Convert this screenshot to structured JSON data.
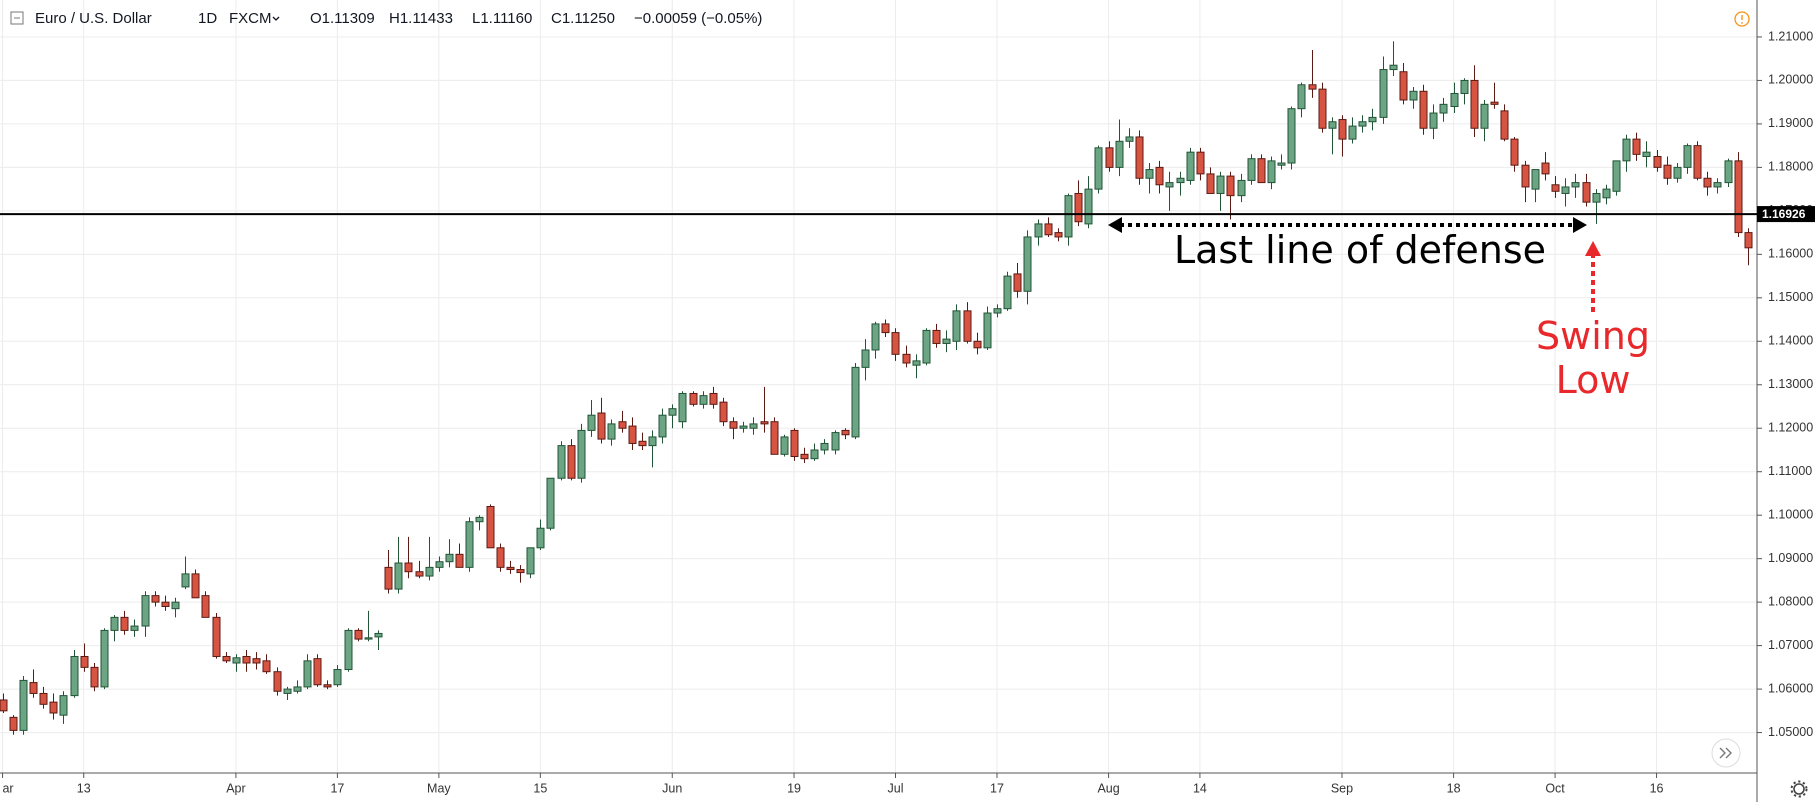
{
  "chart_data": {
    "type": "candlestick",
    "symbol": "Euro / U.S. Dollar",
    "interval": "1D",
    "source": "FXCM",
    "ohlc_labels": [
      "O1.11309",
      "H1.11433",
      "L1.11160",
      "C1.11250"
    ],
    "change": "−0.00059 (−0.05%)",
    "up_color": "#6ba583",
    "up_border": "#225437",
    "down_color": "#d75442",
    "down_border": "#5b1a13",
    "grid": true,
    "open": [
      1.0575,
      1.0535,
      1.0505,
      1.0615,
      1.059,
      1.057,
      1.054,
      1.0585,
      1.0675,
      1.065,
      1.0605,
      1.0735,
      1.0765,
      1.0735,
      1.0745,
      1.0815,
      1.08,
      1.0785,
      1.0835,
      1.0865,
      1.0815,
      1.0765,
      1.0675,
      1.066,
      1.0675,
      1.067,
      1.0665,
      1.064,
      1.059,
      1.0595,
      1.0605,
      1.067,
      1.061,
      1.061,
      1.0645,
      1.0735,
      1.0715,
      1.072,
      1.088,
      1.083,
      1.089,
      1.087,
      1.086,
      1.088,
      1.0893,
      1.091,
      1.088,
      1.0985,
      1.102,
      1.0925,
      1.088,
      1.0875,
      1.0865,
      1.0925,
      1.097,
      1.1085,
      1.116,
      1.1085,
      1.1195,
      1.1235,
      1.1175,
      1.1215,
      1.1205,
      1.117,
      1.116,
      1.118,
      1.123,
      1.1215,
      1.128,
      1.1255,
      1.128,
      1.126,
      1.1215,
      1.12,
      1.12,
      1.1215,
      1.1215,
      1.114,
      1.1195,
      1.114,
      1.113,
      1.115,
      1.115,
      1.1195,
      1.118,
      1.134,
      1.138,
      1.144,
      1.142,
      1.137,
      1.1345,
      1.135,
      1.1425,
      1.1395,
      1.14,
      1.147,
      1.14,
      1.1385,
      1.1465,
      1.1475,
      1.1555,
      1.1515,
      1.164,
      1.167,
      1.165,
      1.164,
      1.174,
      1.167,
      1.175,
      1.1845,
      1.18,
      1.186,
      1.187,
      1.1775,
      1.18,
      1.1755,
      1.1765,
      1.177,
      1.1835,
      1.1785,
      1.174,
      1.178,
      1.1735,
      1.177,
      1.182,
      1.1765,
      1.1805,
      1.181,
      1.1935,
      1.199,
      1.198,
      1.189,
      1.191,
      1.1865,
      1.1895,
      1.1905,
      1.1915,
      1.2025,
      1.202,
      1.1955,
      1.1975,
      1.189,
      1.1925,
      1.194,
      1.197,
      1.2,
      1.189,
      1.195,
      1.193,
      1.1865,
      1.1805,
      1.175,
      1.181,
      1.176,
      1.174,
      1.1755,
      1.1765,
      1.172,
      1.173,
      1.1745,
      1.1815,
      1.1865,
      1.1825,
      1.1825,
      1.1805,
      1.1775,
      1.18,
      1.185,
      1.1775,
      1.1755,
      1.1765,
      1.1815,
      1.165
    ],
    "high": [
      1.059,
      1.054,
      1.063,
      1.0645,
      1.0605,
      1.059,
      1.0595,
      1.069,
      1.0705,
      1.066,
      1.074,
      1.077,
      1.078,
      1.076,
      1.0825,
      1.0825,
      1.0815,
      1.081,
      1.0905,
      1.0875,
      1.0825,
      1.0775,
      1.0685,
      1.068,
      1.069,
      1.0685,
      1.068,
      1.065,
      1.0605,
      1.062,
      1.068,
      1.068,
      1.062,
      1.0655,
      1.074,
      1.074,
      1.078,
      1.0735,
      1.092,
      1.095,
      1.095,
      1.0895,
      1.095,
      1.0905,
      1.0945,
      1.0935,
      1.0995,
      1.1,
      1.1025,
      1.0935,
      1.0895,
      1.0885,
      1.0925,
      1.099,
      1.1085,
      1.117,
      1.1175,
      1.121,
      1.1265,
      1.127,
      1.122,
      1.124,
      1.1225,
      1.119,
      1.1195,
      1.1245,
      1.1255,
      1.1285,
      1.1285,
      1.1285,
      1.1295,
      1.127,
      1.1225,
      1.1215,
      1.1225,
      1.1295,
      1.1225,
      1.1185,
      1.12,
      1.1155,
      1.1165,
      1.1175,
      1.1195,
      1.12,
      1.135,
      1.1405,
      1.1445,
      1.145,
      1.143,
      1.139,
      1.137,
      1.143,
      1.144,
      1.1425,
      1.1485,
      1.149,
      1.142,
      1.148,
      1.1485,
      1.156,
      1.158,
      1.1655,
      1.168,
      1.1685,
      1.166,
      1.174,
      1.177,
      1.178,
      1.185,
      1.186,
      1.191,
      1.189,
      1.1885,
      1.181,
      1.1815,
      1.179,
      1.179,
      1.1845,
      1.1845,
      1.18,
      1.179,
      1.179,
      1.1785,
      1.183,
      1.183,
      1.1825,
      1.183,
      1.194,
      1.1995,
      1.207,
      1.1995,
      1.1915,
      1.192,
      1.1915,
      1.192,
      1.1935,
      1.2055,
      1.209,
      1.204,
      1.1985,
      1.199,
      1.1945,
      1.196,
      1.1995,
      1.2005,
      1.2035,
      1.1955,
      1.1995,
      1.1945,
      1.187,
      1.1815,
      1.1795,
      1.1835,
      1.178,
      1.1775,
      1.1785,
      1.1785,
      1.175,
      1.176,
      1.1815,
      1.1875,
      1.188,
      1.186,
      1.184,
      1.1825,
      1.181,
      1.1855,
      1.186,
      1.179,
      1.1775,
      1.182,
      1.1835,
      1.166
    ],
    "low": [
      1.0545,
      1.0495,
      1.0495,
      1.058,
      1.0555,
      1.053,
      1.052,
      1.058,
      1.064,
      1.0595,
      1.06,
      1.071,
      1.0725,
      1.072,
      1.072,
      1.079,
      1.078,
      1.0765,
      1.083,
      1.081,
      1.0765,
      1.067,
      1.066,
      1.064,
      1.064,
      1.0645,
      1.0635,
      1.0585,
      1.0575,
      1.059,
      1.06,
      1.0605,
      1.06,
      1.0605,
      1.064,
      1.071,
      1.071,
      1.069,
      1.082,
      1.082,
      1.0855,
      1.0855,
      1.085,
      1.087,
      1.088,
      1.088,
      1.087,
      1.0965,
      1.0925,
      1.087,
      1.0865,
      1.0845,
      1.0855,
      1.092,
      1.0965,
      1.108,
      1.108,
      1.1075,
      1.118,
      1.1165,
      1.116,
      1.119,
      1.115,
      1.115,
      1.111,
      1.1165,
      1.12,
      1.12,
      1.125,
      1.1245,
      1.1245,
      1.1205,
      1.1175,
      1.119,
      1.1185,
      1.119,
      1.114,
      1.1135,
      1.1125,
      1.112,
      1.1125,
      1.114,
      1.114,
      1.1175,
      1.1175,
      1.131,
      1.136,
      1.141,
      1.1355,
      1.134,
      1.1315,
      1.1345,
      1.1385,
      1.1375,
      1.138,
      1.1395,
      1.137,
      1.138,
      1.1455,
      1.147,
      1.15,
      1.1485,
      1.162,
      1.164,
      1.163,
      1.162,
      1.1665,
      1.166,
      1.174,
      1.179,
      1.178,
      1.1845,
      1.176,
      1.174,
      1.174,
      1.17,
      1.1735,
      1.176,
      1.177,
      1.174,
      1.17,
      1.168,
      1.172,
      1.176,
      1.1765,
      1.175,
      1.1795,
      1.1795,
      1.1915,
      1.196,
      1.188,
      1.183,
      1.1825,
      1.1855,
      1.188,
      1.1885,
      1.19,
      1.201,
      1.1945,
      1.1935,
      1.1875,
      1.1865,
      1.1905,
      1.1925,
      1.1945,
      1.187,
      1.186,
      1.1935,
      1.186,
      1.179,
      1.172,
      1.172,
      1.177,
      1.173,
      1.171,
      1.173,
      1.171,
      1.167,
      1.1715,
      1.1735,
      1.179,
      1.1815,
      1.18,
      1.179,
      1.176,
      1.1765,
      1.1785,
      1.177,
      1.1735,
      1.174,
      1.1755,
      1.164,
      1.1575
    ],
    "close": [
      1.055,
      1.0505,
      1.062,
      1.059,
      1.0565,
      1.0545,
      1.0585,
      1.0675,
      1.065,
      1.0605,
      1.0735,
      1.0765,
      1.0735,
      1.0745,
      1.0815,
      1.08,
      1.079,
      1.08,
      1.0865,
      1.081,
      1.0765,
      1.0675,
      1.0665,
      1.0672,
      1.066,
      1.066,
      1.064,
      1.0595,
      1.06,
      1.0605,
      1.0665,
      1.061,
      1.0605,
      1.0645,
      1.0735,
      1.0715,
      1.0718,
      1.0728,
      1.083,
      1.089,
      1.087,
      1.086,
      1.088,
      1.0893,
      1.091,
      1.088,
      1.0985,
      1.0995,
      1.0925,
      1.088,
      1.0875,
      1.0868,
      1.0925,
      1.097,
      1.1085,
      1.116,
      1.1085,
      1.1195,
      1.123,
      1.1175,
      1.121,
      1.12,
      1.1165,
      1.116,
      1.118,
      1.123,
      1.1245,
      1.128,
      1.1255,
      1.1275,
      1.1255,
      1.1215,
      1.12,
      1.1205,
      1.121,
      1.121,
      1.114,
      1.118,
      1.1135,
      1.113,
      1.115,
      1.1165,
      1.119,
      1.1185,
      1.134,
      1.138,
      1.144,
      1.142,
      1.137,
      1.135,
      1.1355,
      1.1425,
      1.1395,
      1.1405,
      1.147,
      1.14,
      1.1385,
      1.1465,
      1.1475,
      1.155,
      1.1515,
      1.164,
      1.167,
      1.1645,
      1.164,
      1.1735,
      1.1675,
      1.175,
      1.1845,
      1.18,
      1.186,
      1.187,
      1.1775,
      1.1795,
      1.176,
      1.1765,
      1.1775,
      1.1835,
      1.1785,
      1.174,
      1.178,
      1.1735,
      1.177,
      1.182,
      1.1765,
      1.1815,
      1.181,
      1.1935,
      1.199,
      1.198,
      1.189,
      1.1905,
      1.1865,
      1.1895,
      1.1905,
      1.1915,
      1.2025,
      1.2035,
      1.1955,
      1.1975,
      1.189,
      1.1925,
      1.1945,
      1.197,
      1.2,
      1.189,
      1.1945,
      1.1945,
      1.1865,
      1.1805,
      1.1755,
      1.1795,
      1.1785,
      1.1745,
      1.1755,
      1.1765,
      1.172,
      1.174,
      1.175,
      1.1815,
      1.1865,
      1.183,
      1.1835,
      1.18,
      1.1775,
      1.18,
      1.185,
      1.1775,
      1.1755,
      1.1765,
      1.1815,
      1.165,
      1.1615
    ],
    "xlim": [
      -0.25,
      172.9
    ],
    "xticks": [
      {
        "value": 0,
        "label": "ar"
      },
      {
        "value": 8,
        "label": "13"
      },
      {
        "value": 23,
        "label": "Apr"
      },
      {
        "value": 33,
        "label": "17"
      },
      {
        "value": 43,
        "label": "May"
      },
      {
        "value": 53,
        "label": "15"
      },
      {
        "value": 66,
        "label": "Jun"
      },
      {
        "value": 78,
        "label": "19"
      },
      {
        "value": 88,
        "label": "Jul"
      },
      {
        "value": 98,
        "label": "17"
      },
      {
        "value": 109,
        "label": "Aug"
      },
      {
        "value": 118,
        "label": "14"
      },
      {
        "value": 132,
        "label": "Sep"
      },
      {
        "value": 143,
        "label": "18"
      },
      {
        "value": 153,
        "label": "Oct"
      },
      {
        "value": 163,
        "label": "16"
      }
    ],
    "ylim": [
      1.0407,
      1.2185
    ],
    "yticks": [
      {
        "value": 1.05,
        "label": "1.05000"
      },
      {
        "value": 1.06,
        "label": "1.06000"
      },
      {
        "value": 1.07,
        "label": "1.07000"
      },
      {
        "value": 1.08,
        "label": "1.08000"
      },
      {
        "value": 1.09,
        "label": "1.09000"
      },
      {
        "value": 1.1,
        "label": "1.10000"
      },
      {
        "value": 1.11,
        "label": "1.11000"
      },
      {
        "value": 1.12,
        "label": "1.12000"
      },
      {
        "value": 1.13,
        "label": "1.13000"
      },
      {
        "value": 1.14,
        "label": "1.14000"
      },
      {
        "value": 1.15,
        "label": "1.15000"
      },
      {
        "value": 1.16,
        "label": "1.16000"
      },
      {
        "value": 1.17,
        "label": "1.17000"
      },
      {
        "value": 1.18,
        "label": "1.18000"
      },
      {
        "value": 1.19,
        "label": "1.19000"
      },
      {
        "value": 1.2,
        "label": "1.20000"
      },
      {
        "value": 1.21,
        "label": "1.21000"
      }
    ],
    "hline": 1.16926,
    "annotations": [
      {
        "text": "Last line of defense",
        "color": "#000000"
      },
      {
        "text": "Swing Low",
        "color": "#e8282b"
      }
    ]
  }
}
